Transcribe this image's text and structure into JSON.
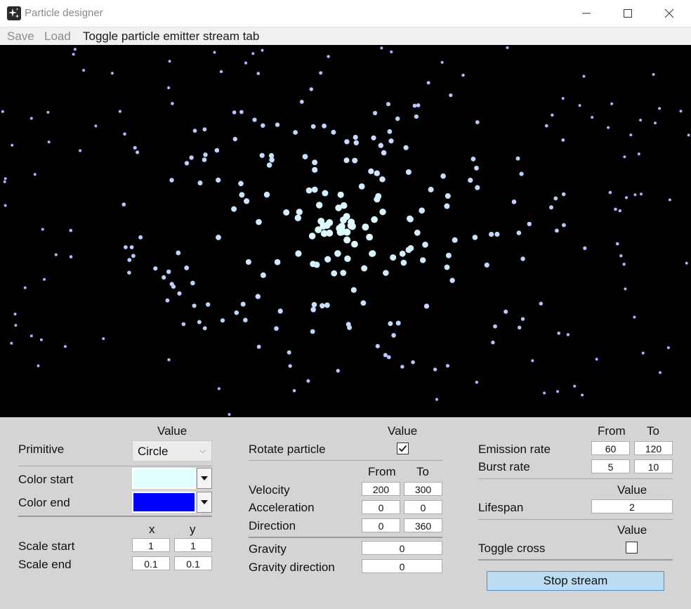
{
  "window": {
    "title": "Particle designer"
  },
  "menu": {
    "save": "Save",
    "load": "Load",
    "toggle_tab": "Toggle particle emitter stream tab"
  },
  "left": {
    "value_header": "Value",
    "primitive_label": "Primitive",
    "primitive_value": "Circle",
    "color_start_label": "Color start",
    "color_start_value": "#e0ffff",
    "color_end_label": "Color end",
    "color_end_value": "#0000ff",
    "x_header": "x",
    "y_header": "y",
    "scale_start_label": "Scale start",
    "scale_start_x": "1",
    "scale_start_y": "1",
    "scale_end_label": "Scale end",
    "scale_end_x": "0.1",
    "scale_end_y": "0.1"
  },
  "middle": {
    "value_header": "Value",
    "rotate_label": "Rotate particle",
    "rotate_checked": true,
    "from_header": "From",
    "to_header": "To",
    "velocity_label": "Velocity",
    "velocity_from": "200",
    "velocity_to": "300",
    "acceleration_label": "Acceleration",
    "acceleration_from": "0",
    "acceleration_to": "0",
    "direction_label": "Direction",
    "direction_from": "0",
    "direction_to": "360",
    "gravity_label": "Gravity",
    "gravity_value": "0",
    "gravity_direction_label": "Gravity direction",
    "gravity_direction_value": "0"
  },
  "right": {
    "from_header": "From",
    "to_header": "To",
    "emission_label": "Emission rate",
    "emission_from": "60",
    "emission_to": "120",
    "burst_label": "Burst rate",
    "burst_from": "5",
    "burst_to": "10",
    "lifespan_header": "Value",
    "lifespan_label": "Lifespan",
    "lifespan_value": "2",
    "cross_header": "Value",
    "cross_label": "Toggle cross",
    "cross_checked": false,
    "stop_button": "Stop stream"
  },
  "canvas": {
    "background": "#000000",
    "particle_inner": "#e0ffff",
    "particle_outer": "#aab4ff"
  }
}
